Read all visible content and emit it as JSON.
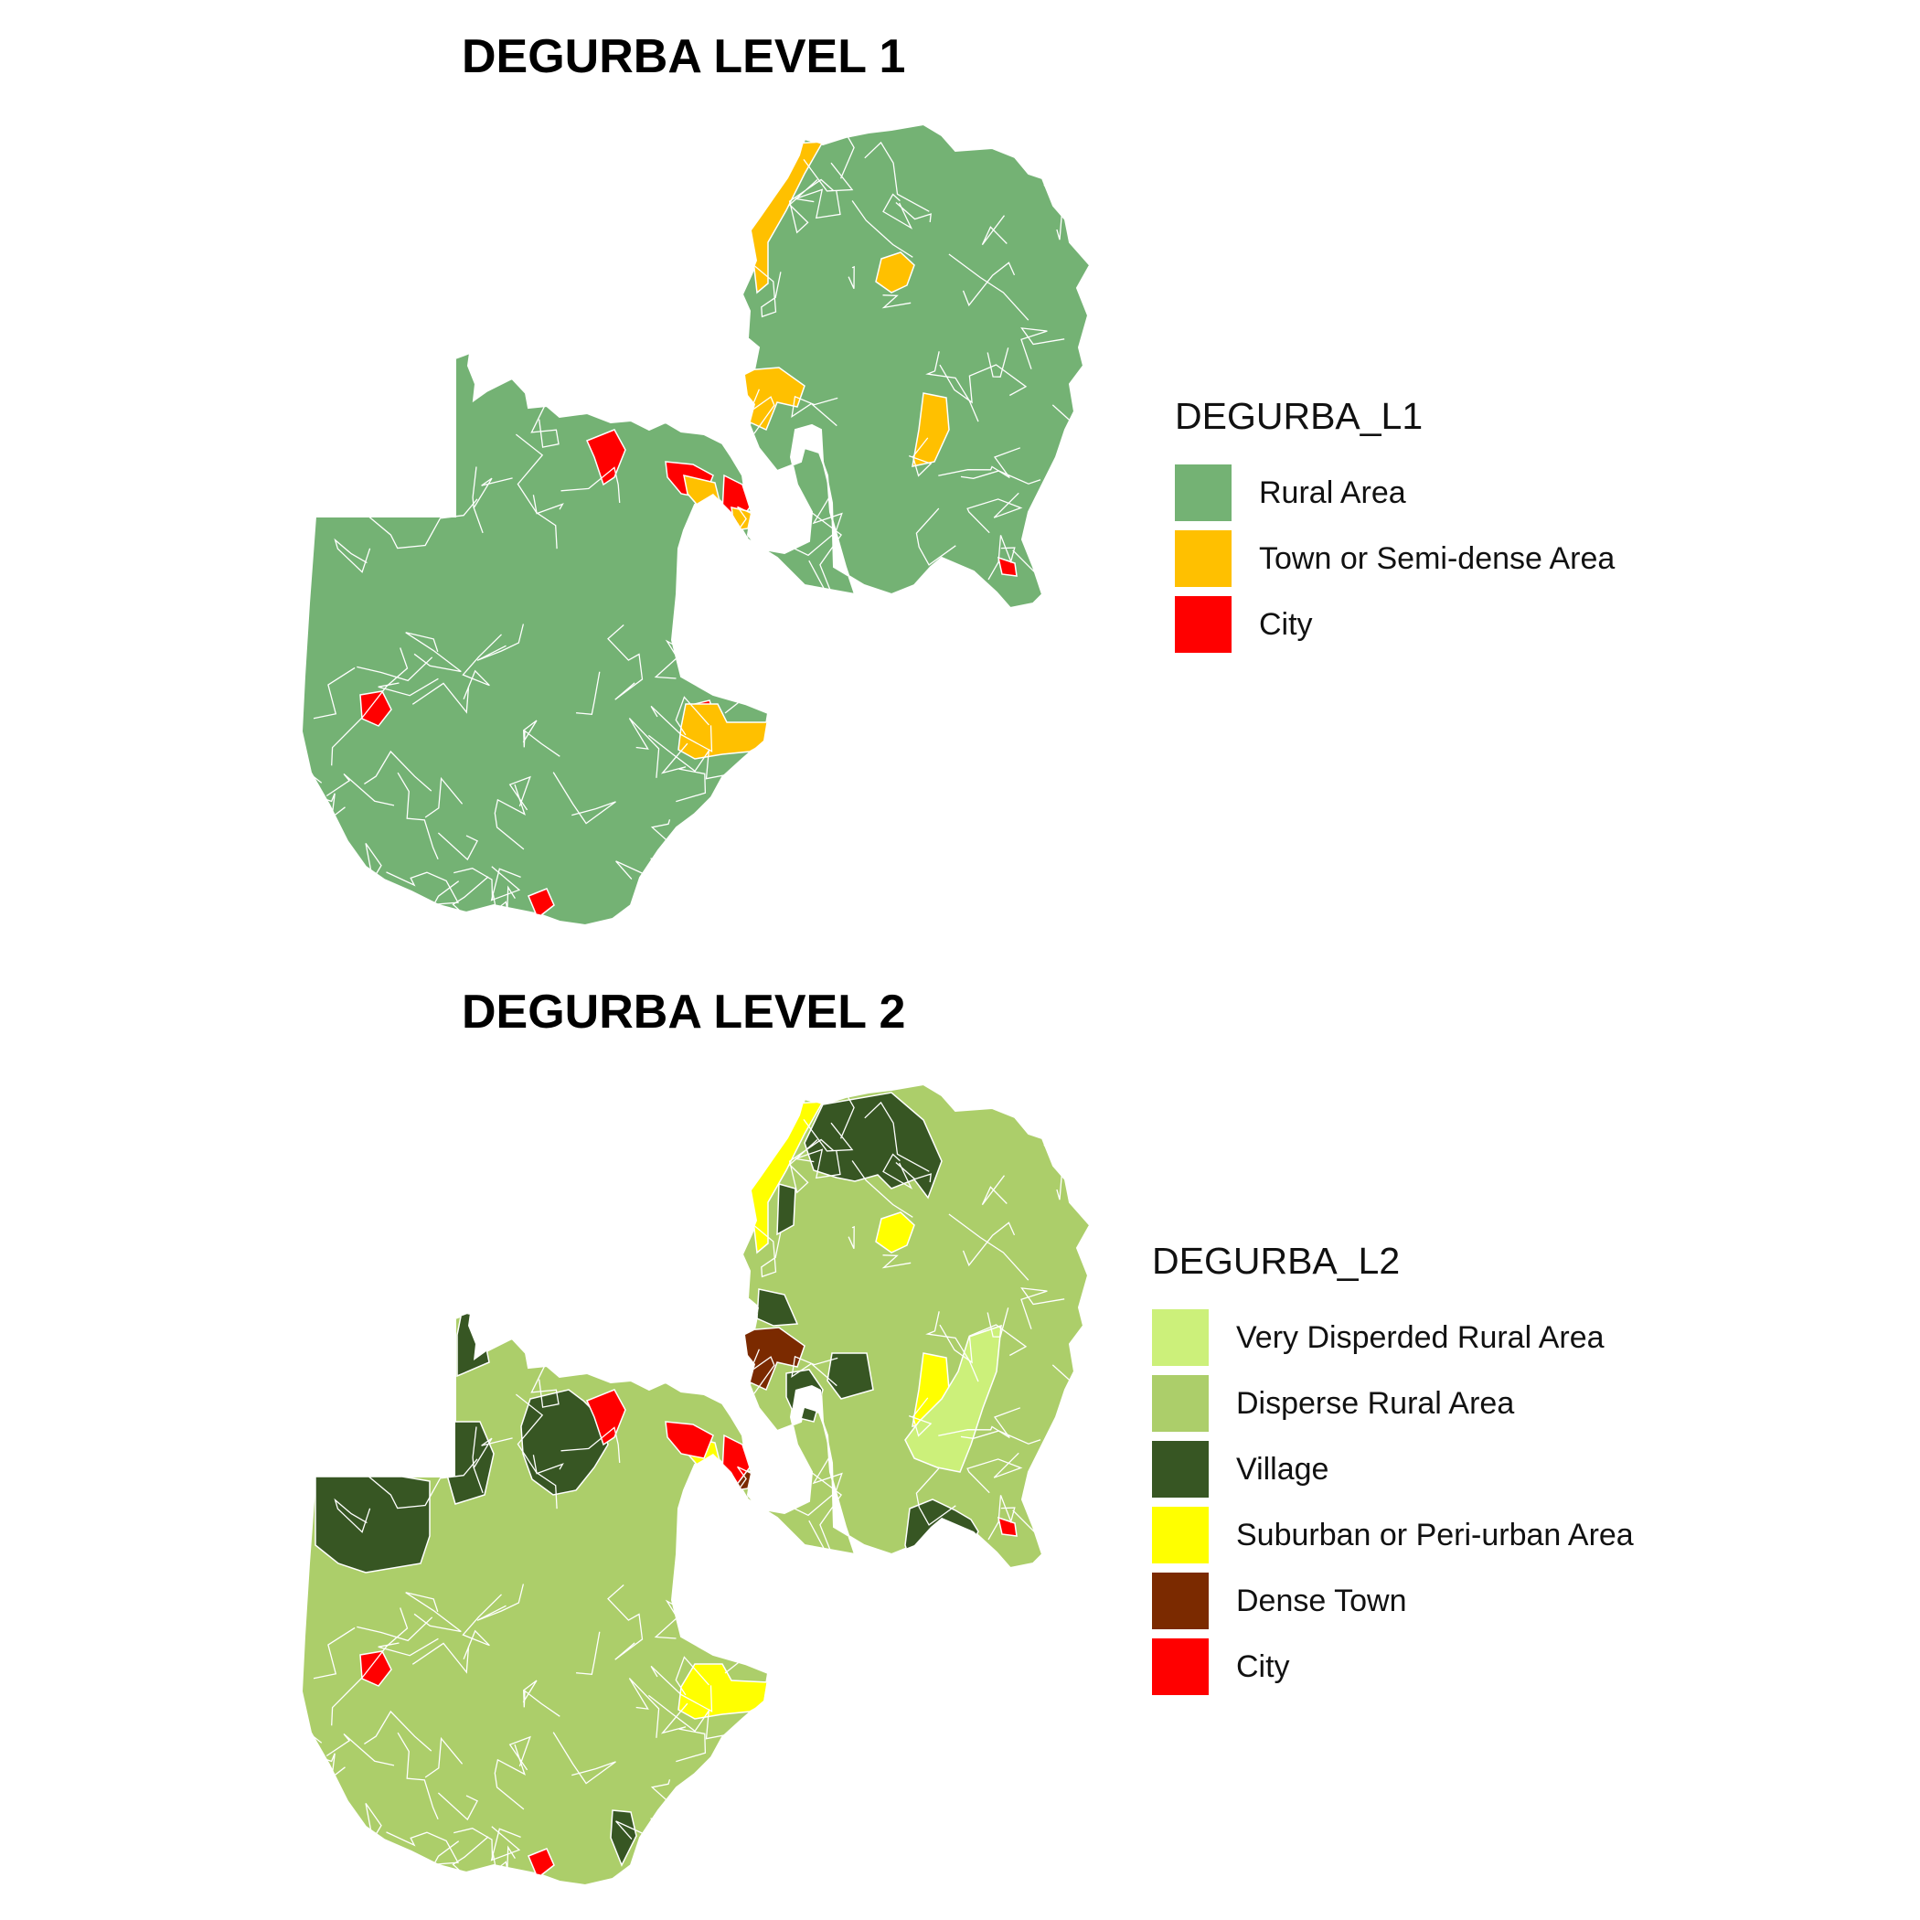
{
  "panels": [
    {
      "title": "DEGURBA LEVEL 1",
      "legend": {
        "title": "DEGURBA_L1",
        "items": [
          {
            "label": "Rural Area",
            "color": "#74b274"
          },
          {
            "label": "Town or Semi-dense Area",
            "color": "#ffc000"
          },
          {
            "label": "City",
            "color": "#ff0000"
          }
        ]
      },
      "base_class": "Rural Area"
    },
    {
      "title": "DEGURBA LEVEL 2",
      "legend": {
        "title": "DEGURBA_L2",
        "items": [
          {
            "label": "Very Disperded Rural Area",
            "color": "#ccf07a"
          },
          {
            "label": "Disperse Rural Area",
            "color": "#acce6a"
          },
          {
            "label": "Village",
            "color": "#375623"
          },
          {
            "label": "Suburban or Peri-urban Area",
            "color": "#ffff00"
          },
          {
            "label": "Dense Town",
            "color": "#7b2a00"
          },
          {
            "label": "City",
            "color": "#ff0000"
          }
        ]
      },
      "base_class": "Disperse Rural Area"
    }
  ],
  "boundary_color": "#ffffff"
}
